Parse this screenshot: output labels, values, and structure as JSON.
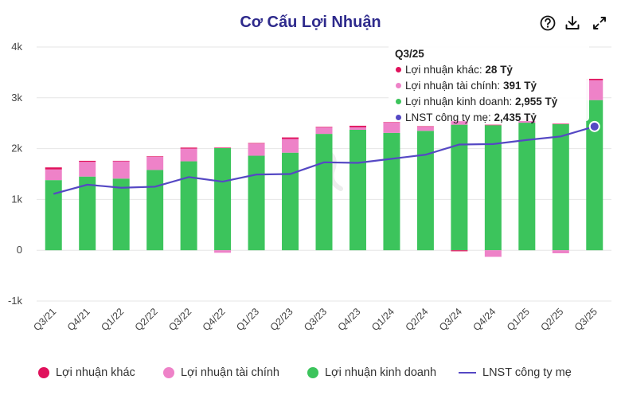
{
  "title": "Cơ Cấu Lợi Nhuận",
  "toolbar": {
    "help_icon": "help-icon",
    "download_icon": "download-icon",
    "expand_icon": "expand-icon"
  },
  "colors": {
    "other": "#e0125c",
    "financial": "#ee82c8",
    "business": "#3cc45c",
    "lnst": "#5548c4",
    "grid": "#e6e6e6",
    "axis_text": "#444444"
  },
  "chart_data": {
    "type": "bar",
    "stacked": true,
    "categories": [
      "Q3/21",
      "Q4/21",
      "Q1/22",
      "Q2/22",
      "Q3/22",
      "Q4/22",
      "Q1/23",
      "Q2/23",
      "Q3/23",
      "Q4/23",
      "Q1/24",
      "Q2/24",
      "Q3/24",
      "Q4/24",
      "Q1/25",
      "Q2/25",
      "Q3/25"
    ],
    "y_ticks": [
      "-1k",
      "0",
      "1k",
      "2k",
      "3k",
      "4k"
    ],
    "y_tick_values": [
      -1000,
      0,
      1000,
      2000,
      3000,
      4000
    ],
    "ylim": [
      -1000,
      4000
    ],
    "grid": true,
    "legend_position": "bottom",
    "series": [
      {
        "name": "Lợi nhuận kinh doanh",
        "type": "bar",
        "color_key": "business",
        "values": [
          1380,
          1450,
          1410,
          1580,
          1750,
          2010,
          1860,
          1920,
          2290,
          2370,
          2310,
          2350,
          2470,
          2460,
          2510,
          2480,
          2955
        ]
      },
      {
        "name": "Lợi nhuận tài chính",
        "type": "bar",
        "color_key": "financial",
        "values": [
          210,
          290,
          340,
          260,
          250,
          -50,
          240,
          270,
          130,
          50,
          210,
          80,
          70,
          -130,
          70,
          -60,
          391
        ]
      },
      {
        "name": "Lợi nhuận khác",
        "type": "bar",
        "color_key": "other",
        "values": [
          40,
          20,
          10,
          10,
          20,
          10,
          10,
          30,
          10,
          30,
          0,
          10,
          -20,
          10,
          10,
          10,
          28
        ]
      },
      {
        "name": "LNST công ty mẹ",
        "type": "line",
        "color_key": "lnst",
        "values": [
          1110,
          1290,
          1230,
          1250,
          1440,
          1350,
          1490,
          1500,
          1730,
          1720,
          1800,
          1880,
          2080,
          2090,
          2170,
          2240,
          2435
        ]
      }
    ]
  },
  "tooltip": {
    "title": "Q3/25",
    "rows": [
      {
        "label": "Lợi nhuận khác: ",
        "value": "28 Tỷ",
        "color_key": "other"
      },
      {
        "label": "Lợi nhuận tài chính: ",
        "value": "391 Tỷ",
        "color_key": "financial"
      },
      {
        "label": "Lợi nhuận kinh doanh: ",
        "value": "2,955 Tỷ",
        "color_key": "business"
      },
      {
        "label": "LNST công ty mẹ: ",
        "value": "2,435 Tỷ",
        "color_key": "lnst"
      }
    ]
  },
  "legend": [
    {
      "label": "Lợi nhuận khác",
      "color_key": "other",
      "kind": "dot"
    },
    {
      "label": "Lợi nhuận tài chính",
      "color_key": "financial",
      "kind": "dot"
    },
    {
      "label": "Lợi nhuận kinh doanh",
      "color_key": "business",
      "kind": "dot"
    },
    {
      "label": "LNST công ty mẹ",
      "color_key": "lnst",
      "kind": "line"
    }
  ]
}
